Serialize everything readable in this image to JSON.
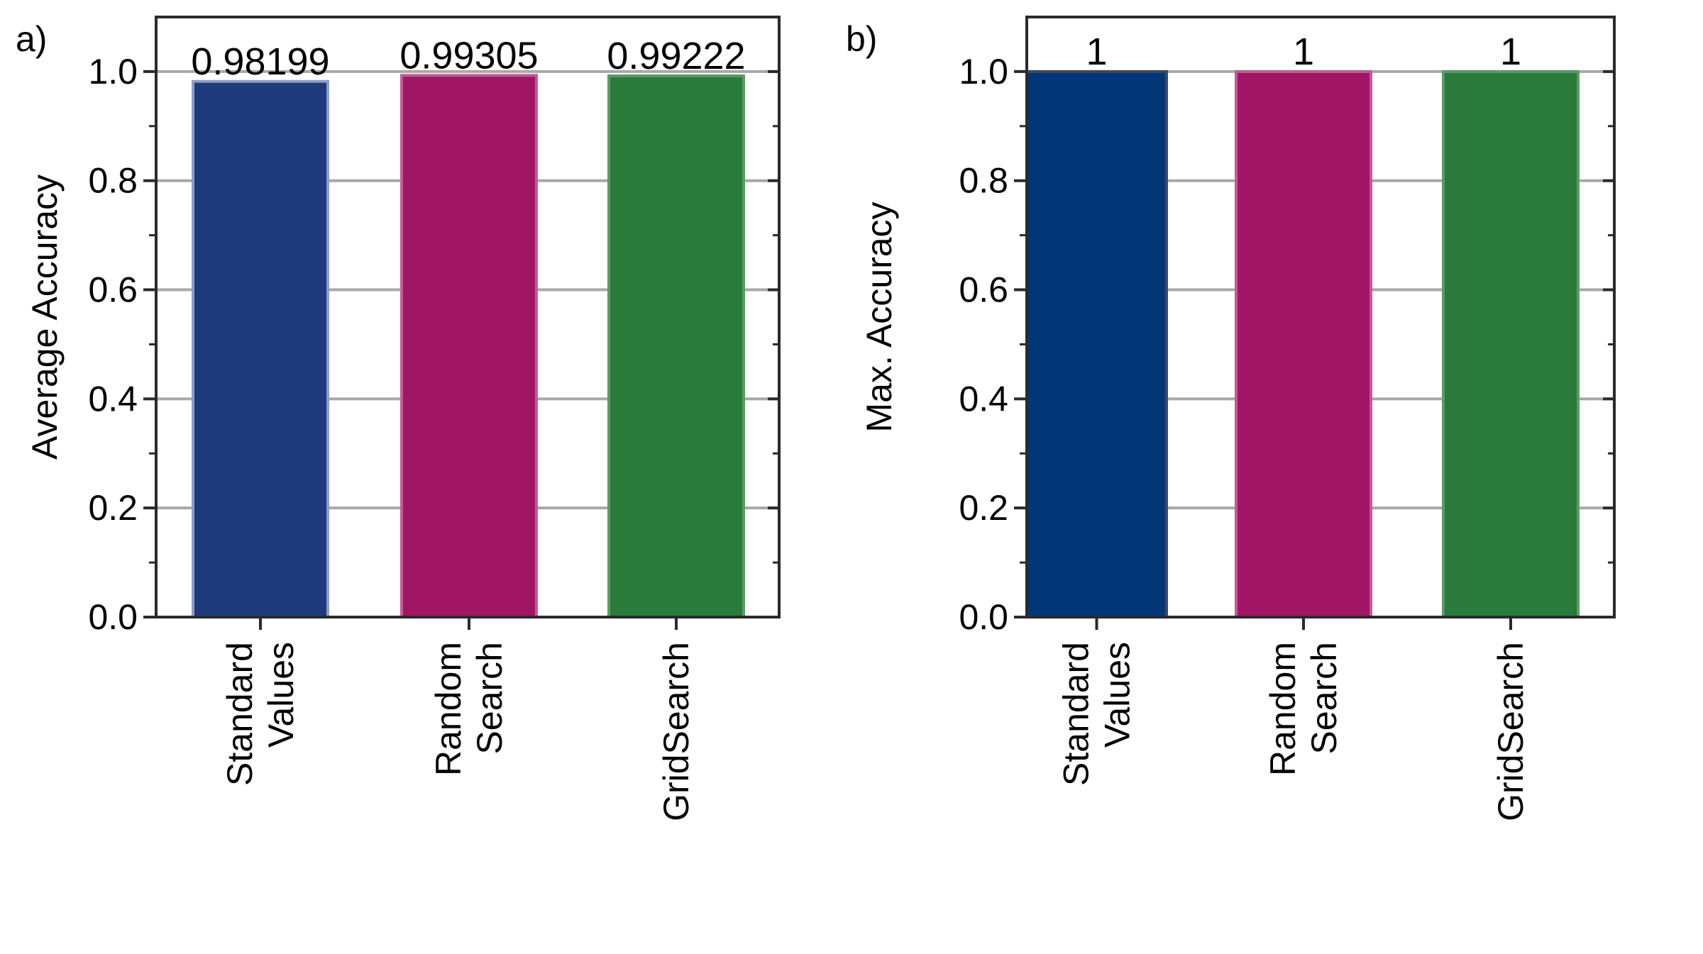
{
  "figure": {
    "caption_letters": [
      "a)",
      "b)"
    ]
  },
  "chart_data": [
    {
      "panel": "a)",
      "type": "bar",
      "categories": [
        [
          "Standard",
          "Values"
        ],
        [
          "Random",
          "Search"
        ],
        [
          "GridSearch"
        ]
      ],
      "values": [
        0.98199,
        0.99305,
        0.99222
      ],
      "data_labels": [
        "0.98199",
        "0.99305",
        "0.99222"
      ],
      "colors": [
        "#1f3a7a",
        "#a11565",
        "#2a7a3b"
      ],
      "bar_edge_colors": [
        "#8e9dc8",
        "#c45a96",
        "#5c9a68"
      ],
      "title": "",
      "xlabel": "",
      "ylabel": "Average Accuracy",
      "ylim": [
        0,
        1.1
      ],
      "yticks": [
        0.0,
        0.2,
        0.4,
        0.6,
        0.8,
        1.0
      ],
      "ytick_labels": [
        "0.0",
        "0.2",
        "0.4",
        "0.6",
        "0.8",
        "1.0"
      ],
      "minor_step": 0.1,
      "grid": "horizontal"
    },
    {
      "panel": "b)",
      "type": "bar",
      "categories": [
        [
          "Standard",
          "Values"
        ],
        [
          "Random",
          "Search"
        ],
        [
          "GridSearch"
        ]
      ],
      "values": [
        1,
        1,
        1
      ],
      "data_labels": [
        "1",
        "1",
        "1"
      ],
      "colors": [
        "#033676",
        "#a11565",
        "#2a7a3b"
      ],
      "bar_edge_colors": [
        "#3a4a66",
        "#c45a96",
        "#5c9a68"
      ],
      "title": "",
      "xlabel": "",
      "ylabel": "Max. Accuracy",
      "ylim": [
        0,
        1.1
      ],
      "yticks": [
        0.0,
        0.2,
        0.4,
        0.6,
        0.8,
        1.0
      ],
      "ytick_labels": [
        "0.0",
        "0.2",
        "0.4",
        "0.6",
        "0.8",
        "1.0"
      ],
      "minor_step": 0.1,
      "grid": "horizontal"
    }
  ]
}
